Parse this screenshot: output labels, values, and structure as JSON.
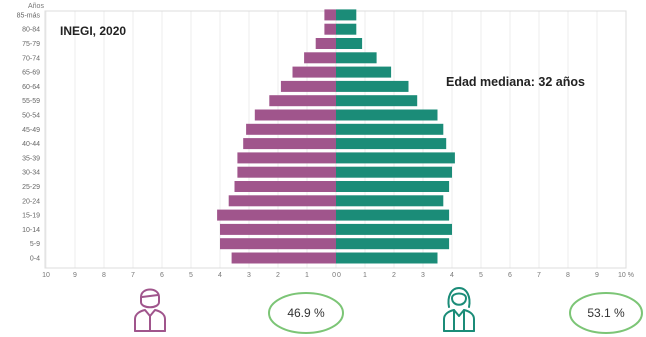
{
  "chart_data": {
    "type": "bar",
    "orientation": "horizontal-pyramid",
    "y_axis_title": "Años",
    "categories": [
      "0-4",
      "5-9",
      "10-14",
      "15-19",
      "20-24",
      "25-29",
      "30-34",
      "35-39",
      "40-44",
      "45-49",
      "50-54",
      "55-59",
      "60-64",
      "65-69",
      "70-74",
      "75-79",
      "80-84",
      "85-más"
    ],
    "series": [
      {
        "values": [
          3.6,
          4.0,
          4.0,
          4.1,
          3.7,
          3.5,
          3.4,
          3.4,
          3.2,
          3.1,
          2.8,
          2.3,
          1.9,
          1.5,
          1.1,
          0.7,
          0.4,
          0.4
        ],
        "color": "#a0558c"
      },
      {
        "values": [
          3.5,
          3.9,
          4.0,
          3.9,
          3.7,
          3.9,
          4.0,
          4.1,
          3.8,
          3.7,
          3.5,
          2.8,
          2.5,
          1.9,
          1.4,
          0.9,
          0.7,
          0.7
        ],
        "color": "#1b8c78"
      }
    ],
    "x_tick_labels_left": [
      "10",
      "9",
      "8",
      "7",
      "6",
      "5",
      "4",
      "3",
      "2",
      "1",
      "0"
    ],
    "x_tick_labels_right": [
      "0",
      "1",
      "2",
      "3",
      "4",
      "5",
      "6",
      "7",
      "8",
      "9",
      "10 %"
    ],
    "xlim": [
      0,
      10
    ],
    "grid": true
  },
  "annotations": {
    "source": "INEGI, 2020",
    "median_age": "Edad mediana: 32 años"
  },
  "totals": {
    "men_percent": "46.9 %",
    "women_percent": "53.1 %"
  },
  "icons": {
    "men": "man-icon",
    "women": "woman-icon"
  },
  "colors": {
    "men": "#a0558c",
    "women": "#1b8c78",
    "circle": "#7cc576"
  }
}
